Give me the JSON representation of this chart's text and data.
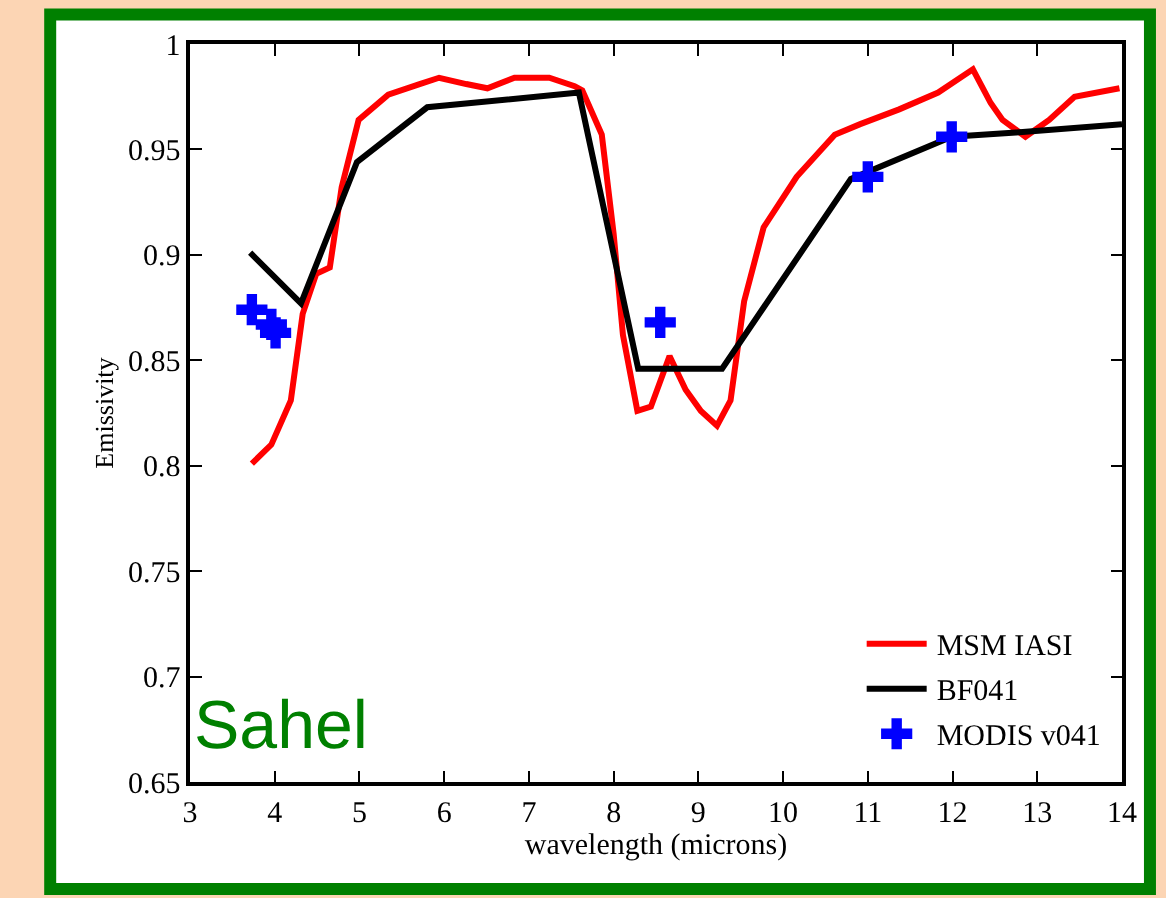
{
  "chart_data": {
    "type": "line",
    "xlabel": "wavelength (microns)",
    "ylabel": "Emissivity",
    "annotations": [
      "Sahel"
    ],
    "xlim": [
      3,
      14
    ],
    "xticks": [
      3,
      4,
      5,
      6,
      7,
      8,
      9,
      10,
      11,
      12,
      13,
      14
    ],
    "ylim": [
      0.65,
      1
    ],
    "yticks": [
      0.65,
      0.7,
      0.75,
      0.8,
      0.85,
      0.9,
      0.95,
      1
    ],
    "legend": "bottom right",
    "series": [
      {
        "name": "MSM IASI",
        "color": "#ff0000",
        "marker": "none",
        "x": [
          3.73,
          3.96,
          4.19,
          4.33,
          4.49,
          4.65,
          4.79,
          4.99,
          5.34,
          5.71,
          5.94,
          6.26,
          6.51,
          6.83,
          7.24,
          7.54,
          7.63,
          7.86,
          8.0,
          8.11,
          8.28,
          8.44,
          8.66,
          8.85,
          9.03,
          9.22,
          9.38,
          9.54,
          9.77,
          10.16,
          10.61,
          10.91,
          11.37,
          11.83,
          12.24,
          12.45,
          12.59,
          12.86,
          13.14,
          13.44,
          13.97
        ],
        "values": [
          0.801,
          0.81,
          0.831,
          0.872,
          0.891,
          0.894,
          0.932,
          0.964,
          0.976,
          0.981,
          0.984,
          0.981,
          0.979,
          0.984,
          0.984,
          0.98,
          0.978,
          0.957,
          0.91,
          0.862,
          0.826,
          0.828,
          0.852,
          0.836,
          0.826,
          0.819,
          0.831,
          0.878,
          0.913,
          0.937,
          0.957,
          0.962,
          0.969,
          0.977,
          0.988,
          0.972,
          0.964,
          0.956,
          0.964,
          0.975,
          0.979
        ]
      },
      {
        "name": "BF041",
        "color": "#000000",
        "marker": "none",
        "x": [
          3.71,
          4.31,
          4.97,
          5.8,
          7.59,
          8.29,
          9.28,
          10.8,
          11.99,
          12.75,
          14
        ],
        "values": [
          0.901,
          0.877,
          0.944,
          0.97,
          0.977,
          0.846,
          0.846,
          0.936,
          0.956,
          0.958,
          0.962
        ]
      },
      {
        "name": "MODIS v041",
        "color": "#0000ff",
        "type": "scatter",
        "marker": "cross",
        "x": [
          3.73,
          3.96,
          4.01,
          8.55,
          11.0,
          11.99
        ],
        "values": [
          0.874,
          0.867,
          0.863,
          0.868,
          0.937,
          0.956
        ]
      }
    ]
  }
}
